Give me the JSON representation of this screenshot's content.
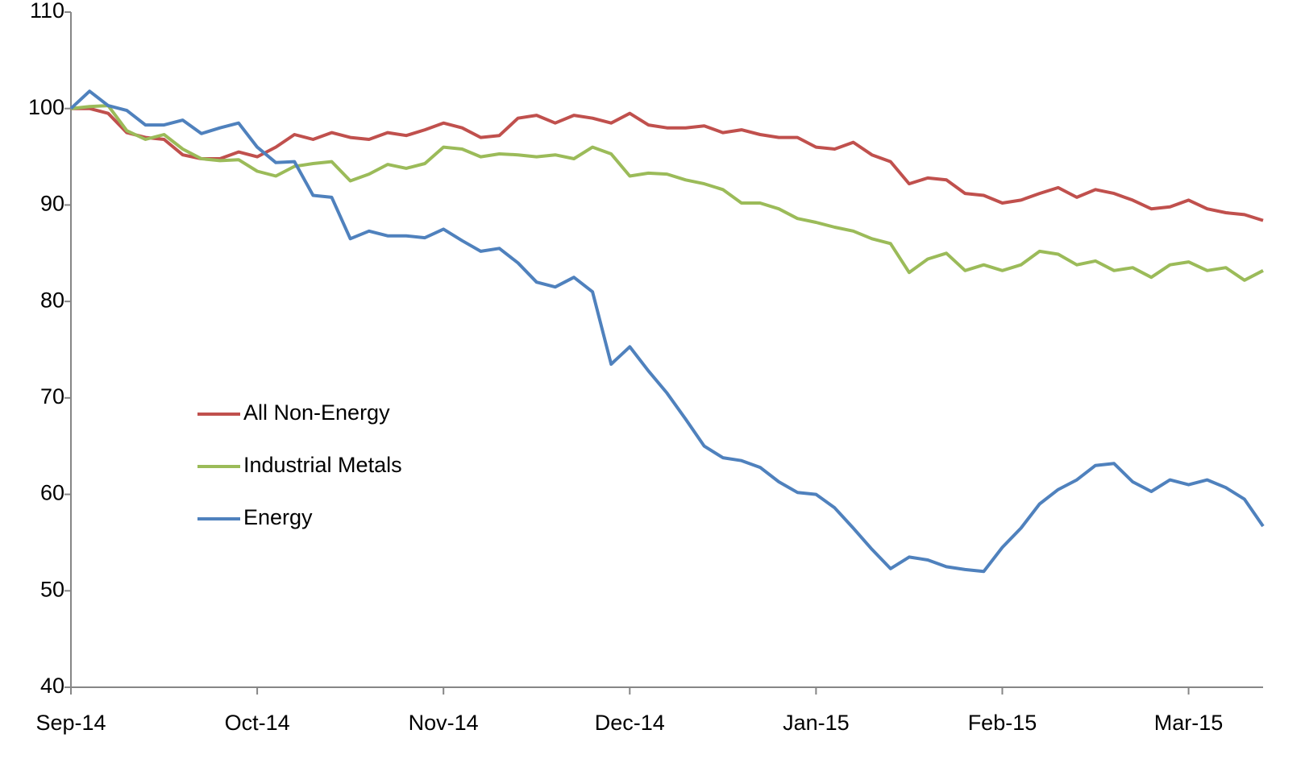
{
  "chart_data": {
    "type": "line",
    "categories": [
      "Sep-14",
      null,
      null,
      null,
      null,
      null,
      null,
      null,
      null,
      null,
      "Oct-14",
      null,
      null,
      null,
      null,
      null,
      null,
      null,
      null,
      null,
      "Nov-14",
      null,
      null,
      null,
      null,
      null,
      null,
      null,
      null,
      null,
      "Dec-14",
      null,
      null,
      null,
      null,
      null,
      null,
      null,
      null,
      null,
      "Jan-15",
      null,
      null,
      null,
      null,
      null,
      null,
      null,
      null,
      null,
      "Feb-15",
      null,
      null,
      null,
      null,
      null,
      null,
      null,
      null,
      null,
      "Mar-15",
      null,
      null,
      null,
      null
    ],
    "series": [
      {
        "name": "All Non-Energy",
        "color": "#c0504d",
        "values": [
          100,
          100,
          99.5,
          97.5,
          97,
          96.8,
          95.2,
          94.8,
          94.8,
          95.5,
          95,
          96,
          97.3,
          96.8,
          97.5,
          97,
          96.8,
          97.5,
          97.2,
          97.8,
          98.5,
          98,
          97,
          97.2,
          99,
          99.3,
          98.5,
          99.3,
          99,
          98.5,
          99.5,
          98.3,
          98,
          98,
          98.2,
          97.5,
          97.8,
          97.3,
          97,
          97,
          96,
          95.8,
          96.5,
          95.2,
          94.5,
          92.2,
          92.8,
          92.6,
          91.2,
          91,
          90.2,
          90.5,
          91.2,
          91.8,
          90.8,
          91.6,
          91.2,
          90.5,
          89.6,
          89.8,
          90.5,
          89.6,
          89.2,
          89,
          88.4
        ]
      },
      {
        "name": "Industrial Metals",
        "color": "#9bbb59",
        "values": [
          100,
          100.2,
          100.3,
          97.7,
          96.8,
          97.3,
          95.8,
          94.8,
          94.6,
          94.7,
          93.5,
          93,
          94,
          94.3,
          94.5,
          92.5,
          93.2,
          94.2,
          93.8,
          94.3,
          96,
          95.8,
          95,
          95.3,
          95.2,
          95,
          95.2,
          94.8,
          96,
          95.3,
          93,
          93.3,
          93.2,
          92.6,
          92.2,
          91.6,
          90.2,
          90.2,
          89.6,
          88.6,
          88.2,
          87.7,
          87.3,
          86.5,
          86,
          83,
          84.4,
          85,
          83.2,
          83.8,
          83.2,
          83.8,
          85.2,
          84.9,
          83.8,
          84.2,
          83.2,
          83.5,
          82.5,
          83.8,
          84.1,
          83.2,
          83.5,
          82.2,
          83.2
        ]
      },
      {
        "name": "Energy",
        "color": "#4f81bd",
        "values": [
          100,
          101.8,
          100.3,
          99.8,
          98.3,
          98.3,
          98.8,
          97.4,
          98,
          98.5,
          96,
          94.4,
          94.5,
          91,
          90.8,
          86.5,
          87.3,
          86.8,
          86.8,
          86.6,
          87.5,
          86.3,
          85.2,
          85.5,
          84,
          82,
          81.5,
          82.5,
          81,
          73.5,
          75.3,
          72.8,
          70.5,
          67.8,
          65,
          63.8,
          63.5,
          62.8,
          61.3,
          60.2,
          60,
          58.6,
          56.5,
          54.3,
          52.3,
          53.5,
          53.2,
          52.5,
          52.2,
          52,
          54.5,
          56.5,
          59,
          60.5,
          61.5,
          63,
          63.2,
          61.3,
          60.3,
          61.5,
          61,
          61.5,
          60.7,
          59.5,
          56.7
        ]
      }
    ],
    "ylim": [
      40,
      110
    ],
    "yticks": [
      40,
      50,
      60,
      70,
      80,
      90,
      100,
      110
    ]
  }
}
